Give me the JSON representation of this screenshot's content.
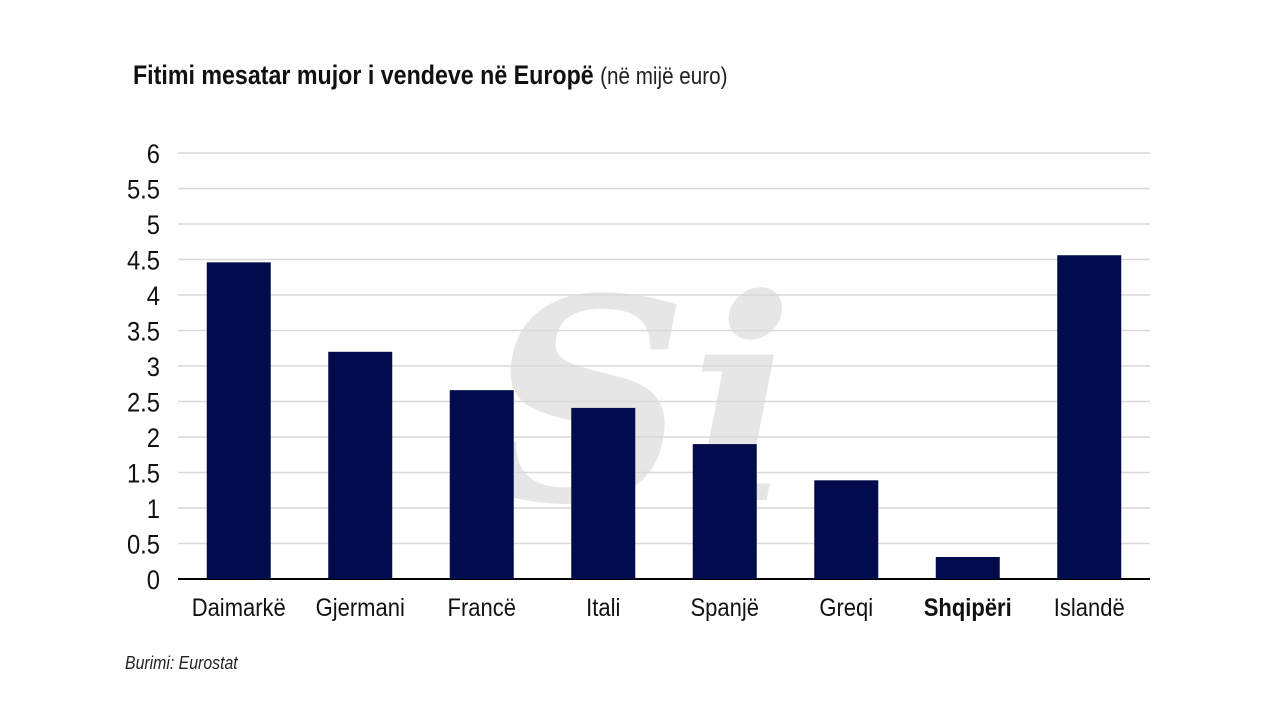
{
  "title": {
    "main": "Fitimi mesatar mujor i vendeve në Europë",
    "unit": "(në mijë euro)"
  },
  "source": "Burimi: Eurostat",
  "watermark": "Si",
  "colors": {
    "bar": "#020b4b",
    "grid": "#d9d9d9",
    "axis": "#000000",
    "watermark": "#e6e6e6"
  },
  "chart_data": {
    "type": "bar",
    "title": "Fitimi mesatar mujor i vendeve në Europë (në mijë euro)",
    "xlabel": "",
    "ylabel": "",
    "categories": [
      "Daimarkë",
      "Gjermani",
      "Francë",
      "Itali",
      "Spanjë",
      "Greqi",
      "Shqipëri",
      "Islandë"
    ],
    "highlighted_category": "Shqipëri",
    "values": [
      4.46,
      3.2,
      2.66,
      2.41,
      1.9,
      1.39,
      0.31,
      4.56
    ],
    "ylim": [
      0,
      6
    ],
    "yticks": [
      "0",
      "0.5",
      "1",
      "1.5",
      "2",
      "2.5",
      "3",
      "3.5",
      "4",
      "4.5",
      "5",
      "5.5",
      "6"
    ],
    "grid": true,
    "legend": "none"
  }
}
